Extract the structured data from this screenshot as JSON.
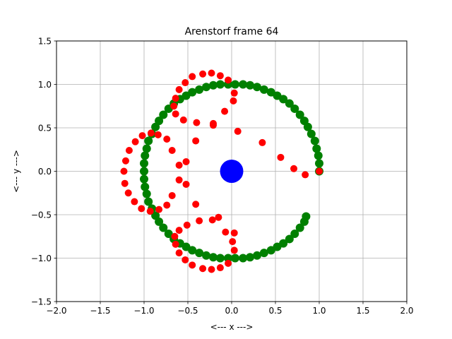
{
  "chart_data": {
    "type": "scatter",
    "title": "Arenstorf frame 64",
    "xlabel": "<---  x  --->",
    "ylabel": "<---  y  --->",
    "xlim": [
      -2.0,
      2.0
    ],
    "ylim": [
      -1.5,
      1.5
    ],
    "xticks": [
      "−2.0",
      "−1.5",
      "−1.0",
      "−0.5",
      "0.0",
      "0.5",
      "1.0",
      "1.5",
      "2.0"
    ],
    "yticks": [
      "−1.5",
      "−1.0",
      "−0.5",
      "0.0",
      "0.5",
      "1.0",
      "1.5"
    ],
    "grid": true,
    "series": [
      {
        "marker": "large circle",
        "color": "#0000ff",
        "points": [
          [
            0.0,
            0.0
          ]
        ]
      },
      {
        "marker": "circle",
        "color": "#008000",
        "points": [
          [
            1.0,
            0.0
          ],
          [
            1.0,
            0.09
          ],
          [
            0.99,
            0.18
          ],
          [
            0.97,
            0.26
          ],
          [
            0.95,
            0.35
          ],
          [
            0.91,
            0.43
          ],
          [
            0.87,
            0.51
          ],
          [
            0.83,
            0.58
          ],
          [
            0.78,
            0.65
          ],
          [
            0.72,
            0.72
          ],
          [
            0.66,
            0.78
          ],
          [
            0.59,
            0.83
          ],
          [
            0.52,
            0.87
          ],
          [
            0.45,
            0.91
          ],
          [
            0.37,
            0.94
          ],
          [
            0.29,
            0.97
          ],
          [
            0.21,
            0.99
          ],
          [
            0.13,
            1.0
          ],
          [
            0.04,
            1.0
          ],
          [
            -0.04,
            1.0
          ],
          [
            -0.13,
            1.0
          ],
          [
            -0.21,
            0.99
          ],
          [
            -0.29,
            0.97
          ],
          [
            -0.37,
            0.94
          ],
          [
            -0.45,
            0.91
          ],
          [
            -0.52,
            0.87
          ],
          [
            -0.59,
            0.83
          ],
          [
            -0.66,
            0.78
          ],
          [
            -0.72,
            0.72
          ],
          [
            -0.78,
            0.65
          ],
          [
            -0.83,
            0.58
          ],
          [
            -0.87,
            0.51
          ],
          [
            -0.91,
            0.43
          ],
          [
            -0.95,
            0.35
          ],
          [
            -0.97,
            0.26
          ],
          [
            -0.99,
            0.18
          ],
          [
            -1.0,
            0.09
          ],
          [
            -1.0,
            0.0
          ],
          [
            -1.0,
            -0.09
          ],
          [
            -0.99,
            -0.18
          ],
          [
            -0.97,
            -0.26
          ],
          [
            -0.95,
            -0.35
          ],
          [
            -0.91,
            -0.43
          ],
          [
            -0.87,
            -0.51
          ],
          [
            -0.83,
            -0.58
          ],
          [
            -0.78,
            -0.65
          ],
          [
            -0.72,
            -0.72
          ],
          [
            -0.66,
            -0.78
          ],
          [
            -0.59,
            -0.83
          ],
          [
            -0.52,
            -0.87
          ],
          [
            -0.45,
            -0.91
          ],
          [
            -0.37,
            -0.94
          ],
          [
            -0.29,
            -0.97
          ],
          [
            -0.21,
            -0.99
          ],
          [
            -0.13,
            -1.0
          ],
          [
            -0.04,
            -1.0
          ],
          [
            0.04,
            -1.0
          ],
          [
            0.13,
            -1.0
          ],
          [
            0.21,
            -0.99
          ],
          [
            0.29,
            -0.97
          ],
          [
            0.37,
            -0.94
          ],
          [
            0.45,
            -0.91
          ],
          [
            0.52,
            -0.87
          ],
          [
            0.59,
            -0.83
          ],
          [
            0.66,
            -0.78
          ],
          [
            0.72,
            -0.72
          ],
          [
            0.78,
            -0.65
          ],
          [
            0.83,
            -0.58
          ],
          [
            0.85,
            -0.52
          ]
        ]
      },
      {
        "marker": "circle",
        "color": "#ff0000",
        "points": [
          [
            1.0,
            0.0
          ],
          [
            0.84,
            -0.04
          ],
          [
            0.71,
            0.03
          ],
          [
            0.56,
            0.16
          ],
          [
            0.35,
            0.33
          ],
          [
            0.07,
            0.46
          ],
          [
            -0.21,
            0.53
          ],
          [
            -0.41,
            0.35
          ],
          [
            -0.52,
            0.11
          ],
          [
            -0.6,
            0.07
          ],
          [
            -0.68,
            0.24
          ],
          [
            -0.74,
            0.37
          ],
          [
            -0.84,
            0.42
          ],
          [
            -0.92,
            0.44
          ],
          [
            -1.02,
            0.41
          ],
          [
            -1.1,
            0.34
          ],
          [
            -1.17,
            0.24
          ],
          [
            -1.21,
            0.12
          ],
          [
            -1.23,
            0.0
          ],
          [
            -1.22,
            -0.14
          ],
          [
            -1.18,
            -0.25
          ],
          [
            -1.11,
            -0.35
          ],
          [
            -1.03,
            -0.43
          ],
          [
            -0.93,
            -0.46
          ],
          [
            -0.83,
            -0.44
          ],
          [
            -0.74,
            -0.39
          ],
          [
            -0.68,
            -0.28
          ],
          [
            -0.6,
            -0.1
          ],
          [
            -0.52,
            -0.15
          ],
          [
            -0.41,
            -0.38
          ],
          [
            -0.22,
            -0.56
          ],
          [
            0.01,
            -0.81
          ],
          [
            0.03,
            -0.91
          ],
          [
            -0.04,
            -1.06
          ],
          [
            -0.13,
            -1.11
          ],
          [
            -0.23,
            -1.13
          ],
          [
            -0.33,
            -1.12
          ],
          [
            -0.45,
            -1.08
          ],
          [
            -0.53,
            -1.02
          ],
          [
            -0.6,
            -0.94
          ],
          [
            -0.64,
            -0.84
          ],
          [
            -0.65,
            -0.75
          ],
          [
            -0.6,
            -0.68
          ],
          [
            -0.51,
            -0.62
          ],
          [
            -0.37,
            -0.57
          ],
          [
            -0.15,
            -0.53
          ],
          [
            -0.07,
            -0.7
          ],
          [
            0.03,
            -0.71
          ],
          [
            0.02,
            0.81
          ],
          [
            0.03,
            0.9
          ],
          [
            -0.04,
            1.05
          ],
          [
            -0.13,
            1.1
          ],
          [
            -0.23,
            1.13
          ],
          [
            -0.33,
            1.12
          ],
          [
            -0.45,
            1.09
          ],
          [
            -0.53,
            1.02
          ],
          [
            -0.6,
            0.94
          ],
          [
            -0.64,
            0.84
          ],
          [
            -0.66,
            0.75
          ],
          [
            -0.64,
            0.66
          ],
          [
            -0.55,
            0.59
          ],
          [
            -0.4,
            0.56
          ],
          [
            -0.21,
            0.55
          ],
          [
            -0.08,
            0.69
          ]
        ]
      }
    ]
  }
}
